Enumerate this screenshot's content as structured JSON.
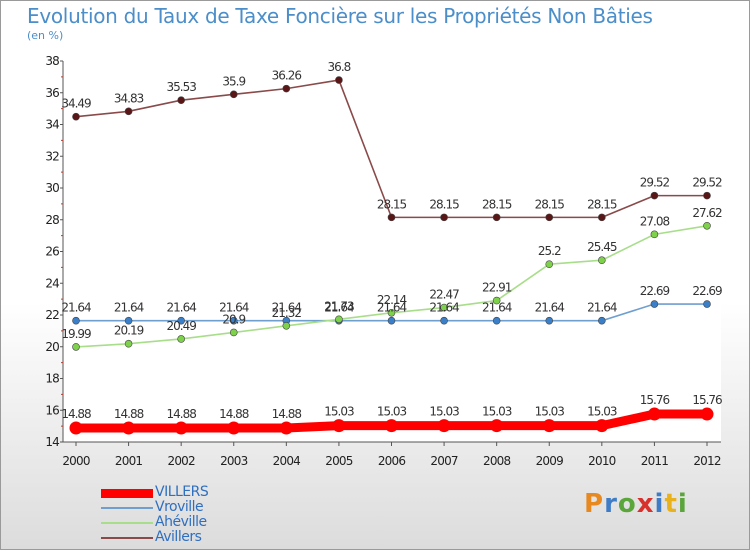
{
  "title": "Evolution du Taux de Taxe Foncière sur les Propriétés Non Bâties",
  "unit": "(en %)",
  "logo": {
    "text": "Proxiti",
    "colors": [
      "#e8891f",
      "#3e7cc7",
      "#5aa63a",
      "#d8302b",
      "#3e7cc7",
      "#e8b21f",
      "#5aa63a"
    ]
  },
  "chart_data": {
    "type": "line",
    "title": "Evolution du Taux de Taxe Foncière sur les Propriétés Non Bâties",
    "ylabel": "(en %)",
    "xlabel": "",
    "x": [
      "2000",
      "2001",
      "2002",
      "2003",
      "2004",
      "2005",
      "2006",
      "2007",
      "2008",
      "2009",
      "2010",
      "2011",
      "2012"
    ],
    "ylim": [
      14,
      38
    ],
    "yticks": [
      14,
      16,
      18,
      20,
      22,
      24,
      26,
      28,
      30,
      32,
      34,
      36,
      38
    ],
    "legend_position": "bottom-left",
    "series": [
      {
        "name": "Avillers",
        "color": "#8a4a4a",
        "marker": "#5a1616",
        "values": [
          34.49,
          34.83,
          35.53,
          35.9,
          36.26,
          36.8,
          28.15,
          28.15,
          28.15,
          28.15,
          28.15,
          29.52,
          29.52
        ],
        "labels": [
          "34.49",
          "34.83",
          "35.53",
          "35.9",
          "36.26",
          "36.8",
          "28.15",
          "28.15",
          "28.15",
          "28.15",
          "28.15",
          "29.52",
          "29.52"
        ]
      },
      {
        "name": "Vroville",
        "color": "#6e9fcf",
        "marker": "#3a7fc8",
        "values": [
          21.64,
          21.64,
          21.64,
          21.64,
          21.64,
          21.64,
          21.64,
          21.64,
          21.64,
          21.64,
          21.64,
          22.69,
          22.69
        ],
        "labels": [
          "21.64",
          "21.64",
          "21.64",
          "21.64",
          "21.64",
          "21.64",
          "21.64",
          "21.64",
          "21.64",
          "21.64",
          "21.64",
          "22.69",
          "22.69"
        ]
      },
      {
        "name": "Ahéville",
        "color": "#a8de8a",
        "marker": "#7ed14a",
        "values": [
          19.99,
          20.19,
          20.49,
          20.9,
          21.32,
          21.73,
          22.14,
          22.47,
          22.91,
          25.2,
          25.45,
          27.08,
          27.62
        ],
        "labels": [
          "19.99",
          "20.19",
          "20.49",
          "20.9",
          "21.32",
          "21.73",
          "22.14",
          "22.47",
          "22.91",
          "25.2",
          "25.45",
          "27.08",
          "27.62"
        ]
      },
      {
        "name": "VILLERS",
        "color": "#ff0000",
        "marker": "#ff0000",
        "values": [
          14.88,
          14.88,
          14.88,
          14.88,
          14.88,
          15.03,
          15.03,
          15.03,
          15.03,
          15.03,
          15.03,
          15.76,
          15.76
        ],
        "labels": [
          "14.88",
          "14.88",
          "14.88",
          "14.88",
          "14.88",
          "15.03",
          "15.03",
          "15.03",
          "15.03",
          "15.03",
          "15.03",
          "15.76",
          "15.76"
        ]
      }
    ],
    "legend_order": [
      "VILLERS",
      "Vroville",
      "Ahéville",
      "Avillers"
    ]
  }
}
